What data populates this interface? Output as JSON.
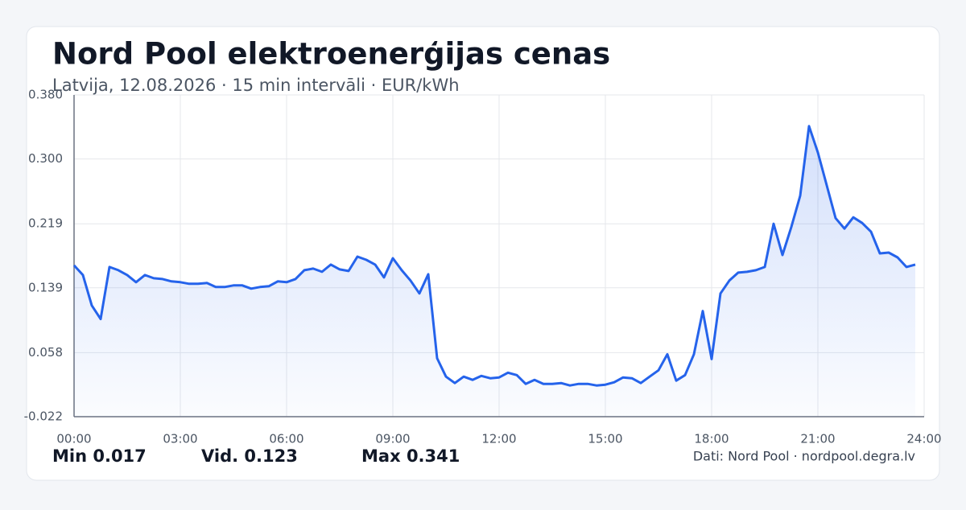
{
  "chart_data": {
    "type": "line",
    "title": "Nord Pool elektroenerģijas cenas",
    "subtitle": "Latvija, 12.08.2026 · 15 min intervāli · EUR/kWh",
    "x": [
      0,
      0.25,
      0.5,
      0.75,
      1,
      1.25,
      1.5,
      1.75,
      2,
      2.25,
      2.5,
      2.75,
      3,
      3.25,
      3.5,
      3.75,
      4,
      4.25,
      4.5,
      4.75,
      5,
      5.25,
      5.5,
      5.75,
      6,
      6.25,
      6.5,
      6.75,
      7,
      7.25,
      7.5,
      7.75,
      8,
      8.25,
      8.5,
      8.75,
      9,
      9.25,
      9.5,
      9.75,
      10,
      10.25,
      10.5,
      10.75,
      11,
      11.25,
      11.5,
      11.75,
      12,
      12.25,
      12.5,
      12.75,
      13,
      13.25,
      13.5,
      13.75,
      14,
      14.25,
      14.5,
      14.75,
      15,
      15.25,
      15.5,
      15.75,
      16,
      16.25,
      16.5,
      16.75,
      17,
      17.25,
      17.5,
      17.75,
      18,
      18.25,
      18.5,
      18.75,
      19,
      19.25,
      19.5,
      19.75,
      20,
      20.25,
      20.5,
      20.75,
      21,
      21.25,
      21.5,
      21.75,
      22,
      22.25,
      22.5,
      22.75,
      23,
      23.25,
      23.5,
      23.75
    ],
    "values": [
      0.167,
      0.155,
      0.117,
      0.1,
      0.165,
      0.161,
      0.155,
      0.146,
      0.155,
      0.151,
      0.15,
      0.147,
      0.146,
      0.144,
      0.144,
      0.145,
      0.14,
      0.14,
      0.142,
      0.142,
      0.138,
      0.14,
      0.141,
      0.147,
      0.146,
      0.15,
      0.161,
      0.163,
      0.159,
      0.168,
      0.162,
      0.16,
      0.178,
      0.174,
      0.168,
      0.152,
      0.176,
      0.161,
      0.148,
      0.132,
      0.156,
      0.051,
      0.028,
      0.02,
      0.028,
      0.024,
      0.029,
      0.026,
      0.027,
      0.033,
      0.03,
      0.019,
      0.024,
      0.019,
      0.019,
      0.02,
      0.017,
      0.019,
      0.019,
      0.017,
      0.018,
      0.021,
      0.027,
      0.026,
      0.02,
      0.028,
      0.036,
      0.056,
      0.023,
      0.03,
      0.056,
      0.11,
      0.05,
      0.132,
      0.148,
      0.158,
      0.159,
      0.161,
      0.165,
      0.219,
      0.18,
      0.215,
      0.254,
      0.341,
      0.308,
      0.267,
      0.226,
      0.213,
      0.227,
      0.22,
      0.209,
      0.182,
      0.183,
      0.177,
      0.165,
      0.168
    ],
    "color": "#2563eb",
    "xlim": [
      0,
      24
    ],
    "xticks": [
      {
        "value": 0,
        "label": "00:00"
      },
      {
        "value": 3,
        "label": "03:00"
      },
      {
        "value": 6,
        "label": "06:00"
      },
      {
        "value": 9,
        "label": "09:00"
      },
      {
        "value": 12,
        "label": "12:00"
      },
      {
        "value": 15,
        "label": "15:00"
      },
      {
        "value": 18,
        "label": "18:00"
      },
      {
        "value": 21,
        "label": "21:00"
      },
      {
        "value": 24,
        "label": "24:00"
      }
    ],
    "ylim": [
      -0.022,
      0.38
    ],
    "yticks": [
      -0.022,
      0.058,
      0.139,
      0.219,
      {
        "value": 0.3,
        "label": "0.300"
      },
      {
        "value": 0.38,
        "label": "0.380"
      }
    ],
    "grid": true,
    "stats": [
      {
        "label": "Min",
        "value": 0.017
      },
      {
        "label": "Vid.",
        "value": 0.123
      },
      {
        "label": "Max",
        "value": 0.341
      }
    ],
    "source": "Dati: Nord Pool · nordpool.degra.lv"
  }
}
